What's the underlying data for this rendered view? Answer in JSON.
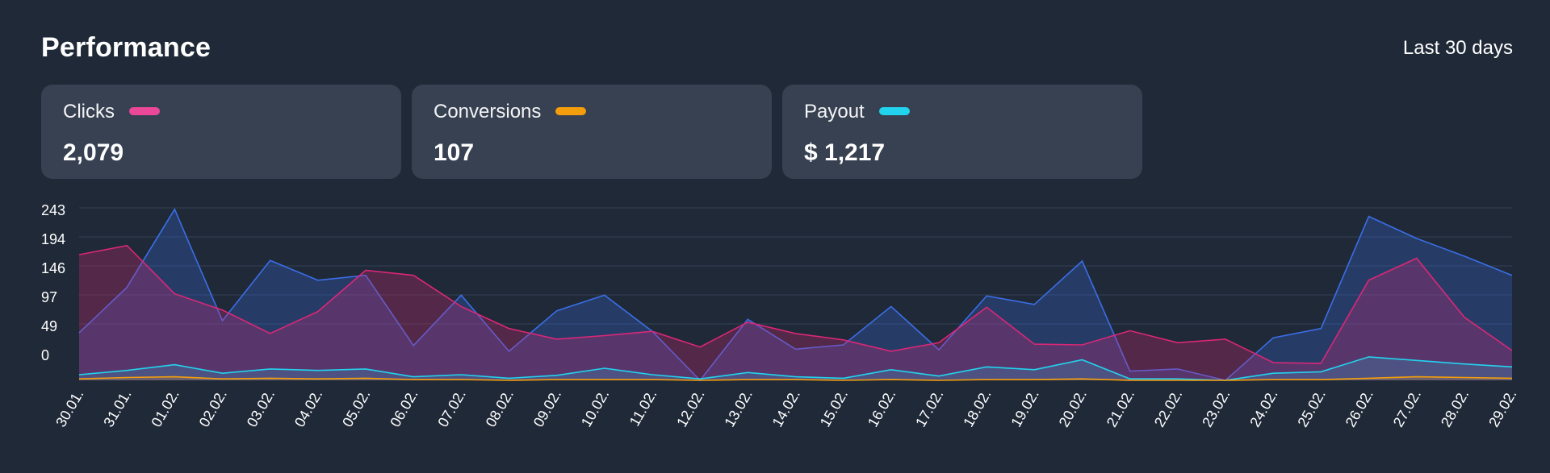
{
  "header": {
    "title": "Performance",
    "range": "Last 30 days"
  },
  "cards": [
    {
      "label": "Clicks",
      "value": "2,079",
      "color": "#ec4899"
    },
    {
      "label": "Conversions",
      "value": "107",
      "color": "#f59e0b"
    },
    {
      "label": "Payout",
      "value": "$ 1,217",
      "color": "#22d3ee"
    }
  ],
  "chart_data": {
    "type": "area",
    "categories": [
      "30.01.",
      "31.01.",
      "01.02.",
      "02.02.",
      "03.02.",
      "04.02.",
      "05.02.",
      "06.02.",
      "07.02.",
      "08.02.",
      "09.02.",
      "10.02.",
      "11.02.",
      "12.02.",
      "13.02.",
      "14.02.",
      "15.02.",
      "16.02.",
      "17.02.",
      "18.02.",
      "19.02.",
      "20.02.",
      "21.02.",
      "22.02.",
      "23.02.",
      "24.02.",
      "25.02.",
      "26.02.",
      "27.02.",
      "28.02.",
      "29.02."
    ],
    "yticks": [
      "243",
      "194",
      "146",
      "97",
      "49",
      "0"
    ],
    "grid": true,
    "series": [
      {
        "color": "#3b6ee6",
        "values": [
          67,
          131,
          241,
          84,
          169,
          141,
          148,
          49,
          120,
          41,
          98,
          120,
          69,
          0,
          86,
          44,
          50,
          104,
          43,
          119,
          107,
          168,
          13,
          16,
          0,
          60,
          73,
          231,
          200,
          175,
          148
        ]
      },
      {
        "color": "#db2777",
        "values": [
          177,
          190,
          122,
          99,
          66,
          97,
          155,
          148,
          104,
          73,
          58,
          63,
          69,
          47,
          82,
          66,
          57,
          41,
          53,
          103,
          51,
          50,
          70,
          53,
          58,
          25,
          24,
          141,
          172,
          89,
          42
        ]
      },
      {
        "color": "#22d3ee",
        "values": [
          8,
          14,
          22,
          10,
          16,
          14,
          16,
          5,
          8,
          3,
          7,
          17,
          8,
          2,
          11,
          5,
          3,
          15,
          6,
          19,
          15,
          29,
          2,
          2,
          0,
          10,
          12,
          33,
          28,
          23,
          19
        ]
      },
      {
        "color": "#f59e0b",
        "values": [
          2,
          4,
          5,
          2,
          3,
          2,
          3,
          1,
          1,
          0,
          1,
          1,
          1,
          0,
          1,
          1,
          0,
          1,
          0,
          1,
          1,
          2,
          0,
          0,
          0,
          1,
          1,
          3,
          5,
          4,
          3
        ]
      }
    ]
  }
}
